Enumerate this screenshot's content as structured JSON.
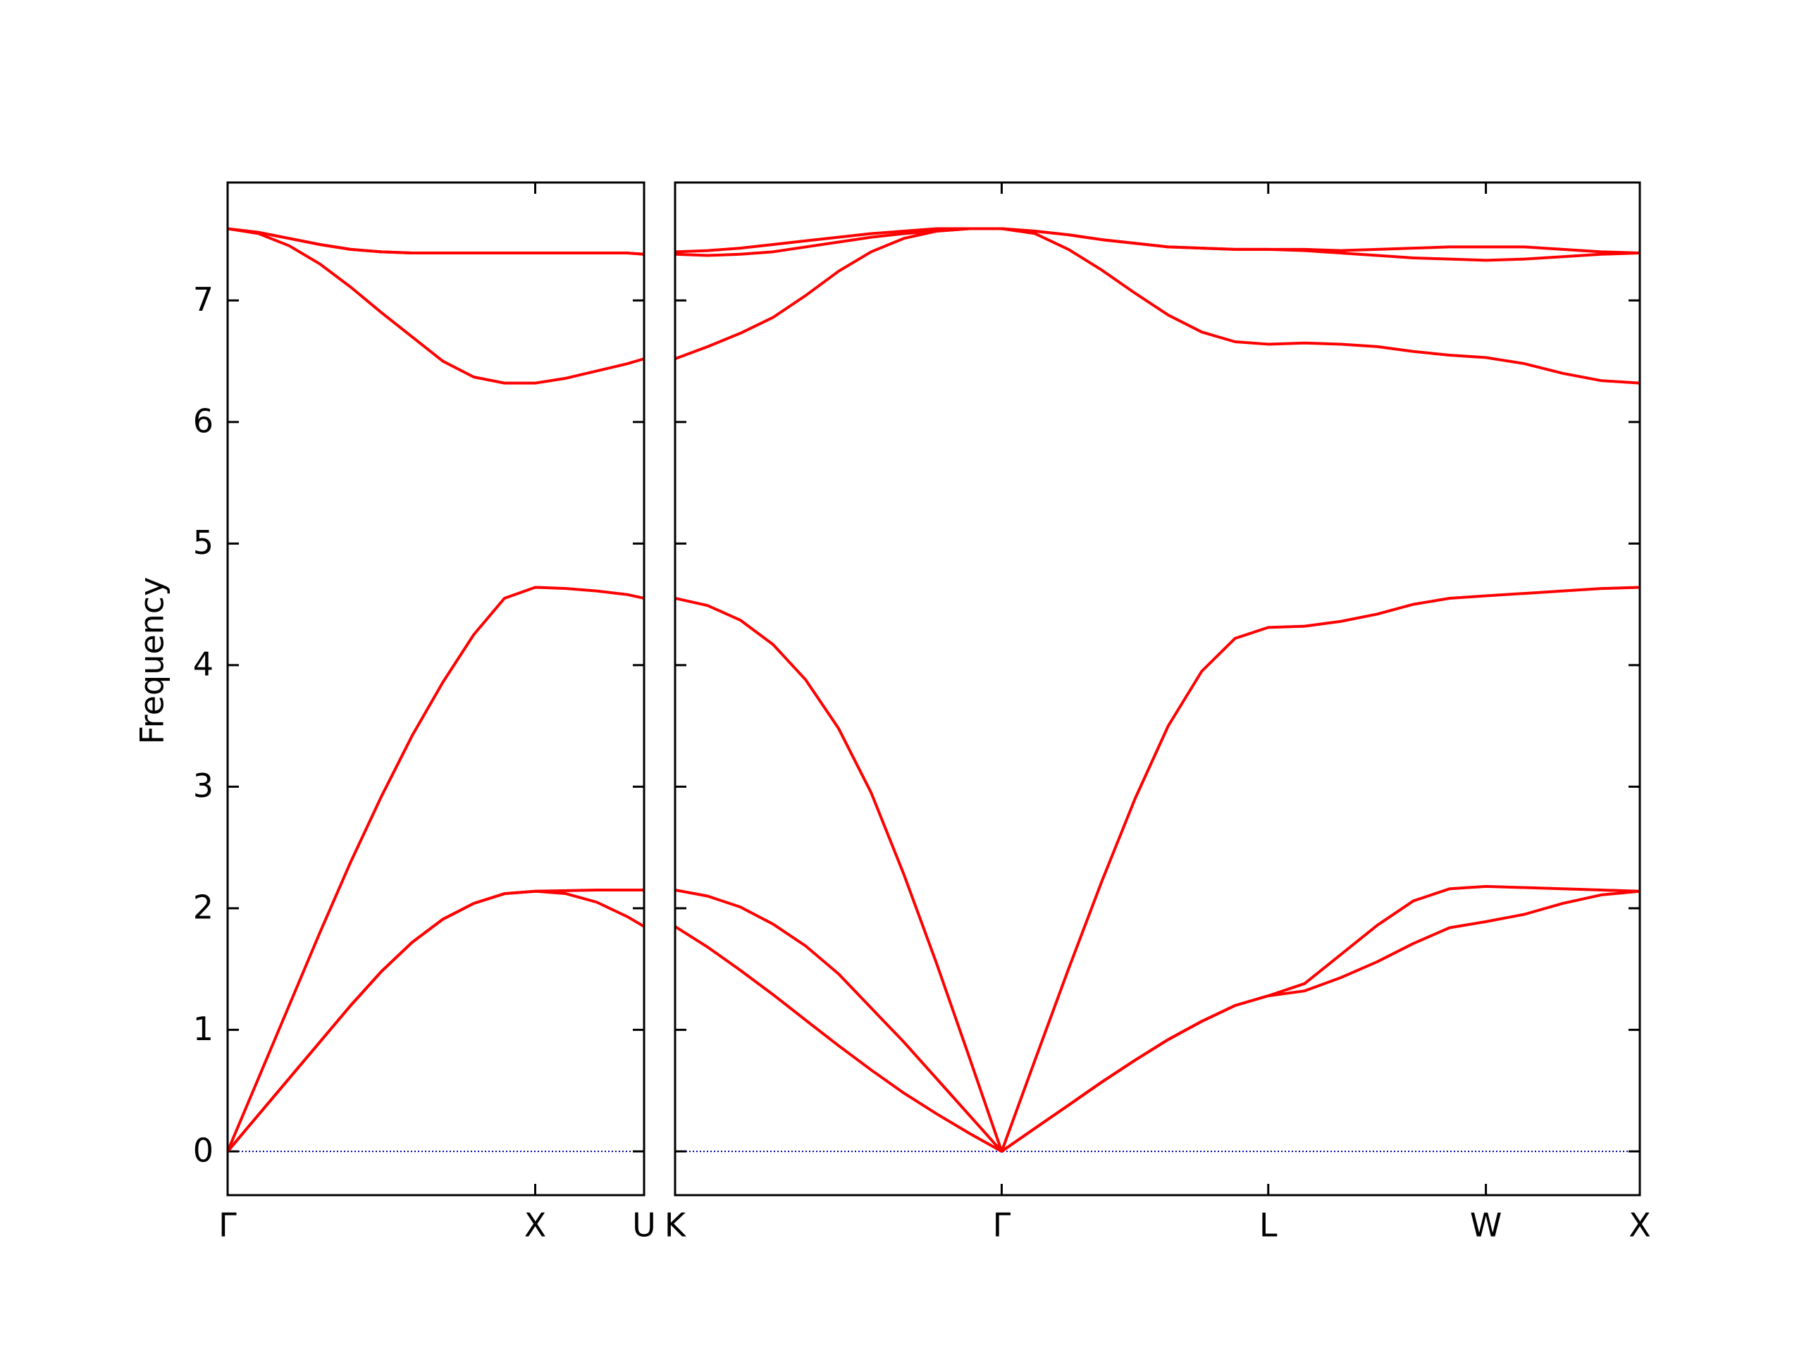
{
  "chart_data": [
    {
      "type": "line",
      "ylabel": "Frequency",
      "x": [
        0,
        0.1,
        0.2,
        0.3,
        0.4,
        0.5,
        0.6,
        0.7,
        0.8,
        0.9,
        1.0,
        1.1,
        1.2,
        1.3,
        1.354
      ],
      "xlim": [
        0,
        1.354
      ],
      "xticks": [
        {
          "value": 0,
          "label": "Γ"
        },
        {
          "value": 1,
          "label": "X"
        },
        {
          "value": 1.354,
          "label": "U"
        }
      ],
      "ylim": [
        -0.36,
        7.97
      ],
      "yticks": [
        0,
        1,
        2,
        3,
        4,
        5,
        6,
        7
      ],
      "zero_line": true,
      "zero_line_color": "#0000aa",
      "series": [
        {
          "color": "#ff0000",
          "values": [
            0,
            0.3,
            0.6,
            0.9,
            1.2,
            1.48,
            1.72,
            1.91,
            2.04,
            2.12,
            2.14,
            2.12,
            2.05,
            1.93,
            1.85
          ]
        },
        {
          "color": "#ff0000",
          "values": [
            0,
            0.3,
            0.6,
            0.9,
            1.2,
            1.48,
            1.72,
            1.91,
            2.04,
            2.12,
            2.14,
            2.145,
            2.15,
            2.15,
            2.15
          ]
        },
        {
          "color": "#ff0000",
          "values": [
            0,
            0.6,
            1.2,
            1.8,
            2.38,
            2.92,
            3.42,
            3.86,
            4.25,
            4.55,
            4.64,
            4.63,
            4.61,
            4.58,
            4.55
          ]
        },
        {
          "color": "#ff0000",
          "values": [
            7.59,
            7.55,
            7.45,
            7.3,
            7.11,
            6.9,
            6.7,
            6.5,
            6.37,
            6.32,
            6.32,
            6.36,
            6.42,
            6.48,
            6.52
          ]
        },
        {
          "color": "#ff0000",
          "values": [
            7.59,
            7.56,
            7.51,
            7.46,
            7.42,
            7.4,
            7.39,
            7.39,
            7.39,
            7.39,
            7.39,
            7.39,
            7.39,
            7.39,
            7.38
          ]
        },
        {
          "color": "#ff0000",
          "values": [
            7.59,
            7.56,
            7.51,
            7.46,
            7.42,
            7.4,
            7.39,
            7.39,
            7.39,
            7.39,
            7.39,
            7.39,
            7.39,
            7.39,
            7.38
          ]
        }
      ]
    },
    {
      "type": "line",
      "x": [
        1.354,
        1.46,
        1.566,
        1.672,
        1.778,
        1.885,
        1.991,
        2.097,
        2.203,
        2.309,
        2.415,
        2.523,
        2.632,
        2.74,
        2.848,
        2.956,
        3.065,
        3.173,
        3.281,
        3.399,
        3.517,
        3.635,
        3.752,
        3.87,
        3.988,
        4.113,
        4.238,
        4.363,
        4.488
      ],
      "xlim": [
        1.354,
        4.488
      ],
      "xticks": [
        {
          "value": 1.354,
          "label": "K"
        },
        {
          "value": 2.415,
          "label": "Γ"
        },
        {
          "value": 3.281,
          "label": "L"
        },
        {
          "value": 3.988,
          "label": "W"
        },
        {
          "value": 4.488,
          "label": "X"
        }
      ],
      "zero_line": true,
      "zero_line_color": "#0000aa",
      "series": [
        {
          "color": "#ff0000",
          "values": [
            1.85,
            1.68,
            1.49,
            1.29,
            1.08,
            0.87,
            0.67,
            0.48,
            0.31,
            0.15,
            0,
            0.19,
            0.38,
            0.57,
            0.75,
            0.92,
            1.07,
            1.2,
            1.28,
            1.32,
            1.43,
            1.56,
            1.71,
            1.84,
            1.89,
            1.95,
            2.04,
            2.11,
            2.14
          ]
        },
        {
          "color": "#ff0000",
          "values": [
            2.15,
            2.1,
            2.01,
            1.87,
            1.69,
            1.46,
            1.18,
            0.9,
            0.6,
            0.3,
            0,
            0.19,
            0.38,
            0.57,
            0.75,
            0.92,
            1.07,
            1.2,
            1.28,
            1.38,
            1.62,
            1.86,
            2.06,
            2.16,
            2.18,
            2.17,
            2.16,
            2.15,
            2.14
          ]
        },
        {
          "color": "#ff0000",
          "values": [
            4.55,
            4.49,
            4.37,
            4.17,
            3.88,
            3.48,
            2.95,
            2.28,
            1.55,
            0.78,
            0,
            0.75,
            1.5,
            2.22,
            2.9,
            3.5,
            3.95,
            4.22,
            4.31,
            4.32,
            4.36,
            4.42,
            4.5,
            4.55,
            4.57,
            4.59,
            4.61,
            4.63,
            4.64
          ]
        },
        {
          "color": "#ff0000",
          "values": [
            6.52,
            6.62,
            6.73,
            6.86,
            7.04,
            7.24,
            7.4,
            7.51,
            7.57,
            7.59,
            7.59,
            7.55,
            7.42,
            7.25,
            7.06,
            6.88,
            6.74,
            6.66,
            6.64,
            6.65,
            6.64,
            6.62,
            6.58,
            6.55,
            6.53,
            6.48,
            6.4,
            6.34,
            6.32
          ]
        },
        {
          "color": "#ff0000",
          "values": [
            7.38,
            7.37,
            7.38,
            7.4,
            7.44,
            7.48,
            7.52,
            7.55,
            7.57,
            7.59,
            7.59,
            7.57,
            7.54,
            7.5,
            7.47,
            7.44,
            7.43,
            7.42,
            7.42,
            7.41,
            7.39,
            7.37,
            7.35,
            7.34,
            7.33,
            7.34,
            7.36,
            7.38,
            7.39
          ]
        },
        {
          "color": "#ff0000",
          "values": [
            7.4,
            7.41,
            7.43,
            7.46,
            7.49,
            7.52,
            7.55,
            7.57,
            7.59,
            7.59,
            7.59,
            7.57,
            7.54,
            7.5,
            7.47,
            7.44,
            7.43,
            7.42,
            7.42,
            7.42,
            7.41,
            7.42,
            7.43,
            7.44,
            7.44,
            7.44,
            7.42,
            7.4,
            7.39
          ]
        }
      ]
    }
  ]
}
